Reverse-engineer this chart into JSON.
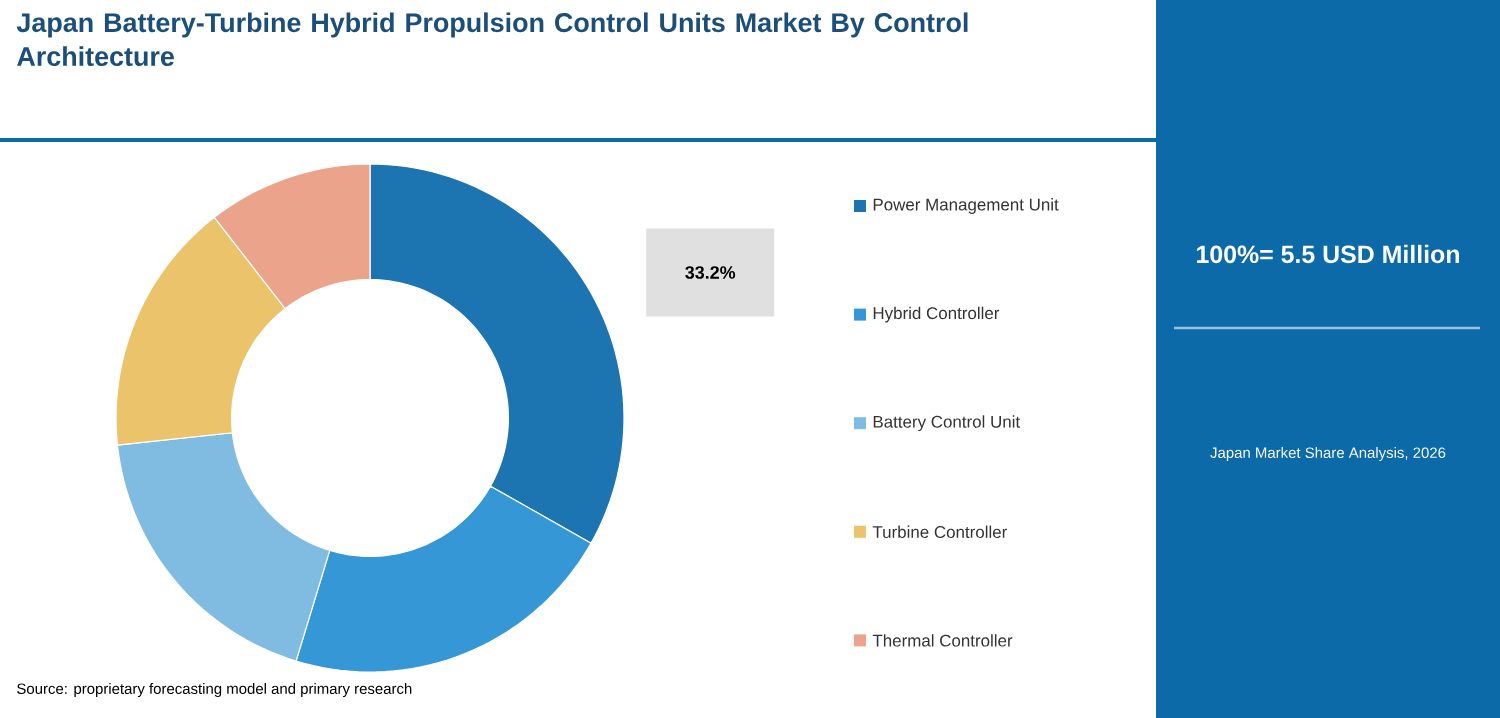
{
  "chart_data": {
    "type": "donut",
    "title": "Japan Battery-Turbine Hybrid Propulsion Control Units Market By Control Architecture",
    "categories": [
      "Power Management Unit",
      "Hybrid Controller",
      "Battery Control Unit",
      "Turbine Controller",
      "Thermal Controller"
    ],
    "values": [
      33.2,
      21.5,
      18.6,
      16.2,
      10.5
    ],
    "colors": [
      "#1c75b0",
      "#3597d6",
      "#80bce2",
      "#ebc36b",
      "#eba38b"
    ],
    "value_labels": [
      "33.2%",
      null,
      null,
      null,
      null
    ],
    "legend": "right",
    "annotations": [
      "100%= 5.5 USD Million",
      "Japan Market Share Analysis, 2026",
      "Source: proprietary forecasting model and primary research"
    ]
  }
}
